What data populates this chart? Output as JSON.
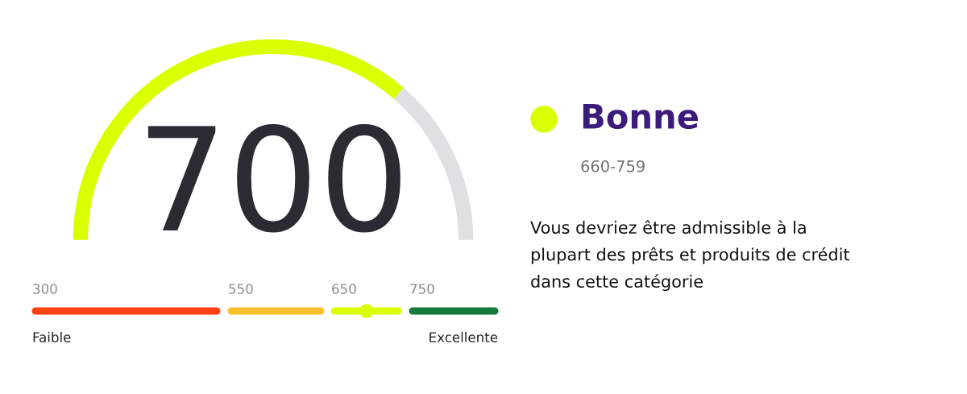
{
  "chart_data": [
    {
      "type": "donut",
      "categories": [
        null,
        null
      ],
      "values": [
        72.7,
        27.3
      ],
      "colors": [
        "#d9ff00",
        "#e0e0e3"
      ],
      "annotations": [
        "700"
      ]
    },
    {
      "type": "other",
      "categories": [
        "300",
        "550",
        "650",
        "750"
      ],
      "colors": [
        "#ff4013",
        "#fbc02d",
        "#d9ff00",
        "#147a3a"
      ],
      "annotations": [
        "Faible",
        "Excellente"
      ]
    },
    {
      "type": "other",
      "title": "Bonne",
      "subtitle": "660-759",
      "colors": [
        "#d9ff00"
      ],
      "annotations": [
        "Vous devriez être admissible à la plupart des prêts et produits de crédit dans cette catégorie"
      ]
    }
  ]
}
